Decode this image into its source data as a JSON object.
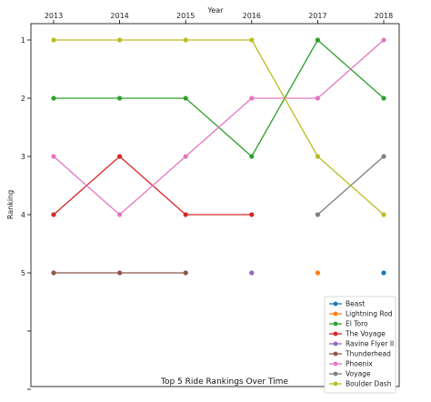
{
  "chart_data": {
    "type": "line",
    "title": "Top 5 Ride Rankings Over Time",
    "xlabel": "Year",
    "ylabel": "Ranking",
    "x": [
      "2013",
      "2014",
      "2015",
      "2016",
      "2017",
      "2018"
    ],
    "x_axis_position": "top",
    "y_inverted": true,
    "y_ticks": [
      "1",
      "2",
      "3",
      "4",
      "5"
    ],
    "ylim": [
      1,
      7
    ],
    "grid": false,
    "legend_position": "bottom-right",
    "series": [
      {
        "name": "Beast",
        "color": "#1f77b4",
        "values": [
          null,
          null,
          null,
          null,
          null,
          5
        ]
      },
      {
        "name": "Lightning Rod",
        "color": "#ff7f0e",
        "values": [
          null,
          null,
          null,
          null,
          5,
          null
        ]
      },
      {
        "name": "El Toro",
        "color": "#2ca02c",
        "values": [
          2,
          2,
          2,
          3,
          1,
          2
        ]
      },
      {
        "name": "The Voyage",
        "color": "#d62728",
        "values": [
          4,
          3,
          4,
          4,
          null,
          null
        ]
      },
      {
        "name": "Ravine Flyer II",
        "color": "#9467bd",
        "values": [
          null,
          null,
          null,
          5,
          null,
          null
        ]
      },
      {
        "name": "Thunderhead",
        "color": "#8c564b",
        "values": [
          5,
          5,
          5,
          null,
          null,
          null
        ]
      },
      {
        "name": "Phoenix",
        "color": "#e377c2",
        "values": [
          3,
          4,
          3,
          2,
          2,
          1
        ]
      },
      {
        "name": "Voyage",
        "color": "#7f7f7f",
        "values": [
          null,
          null,
          null,
          null,
          4,
          3
        ]
      },
      {
        "name": "Boulder Dash",
        "color": "#bcbd22",
        "values": [
          1,
          1,
          1,
          1,
          3,
          4
        ]
      }
    ]
  }
}
